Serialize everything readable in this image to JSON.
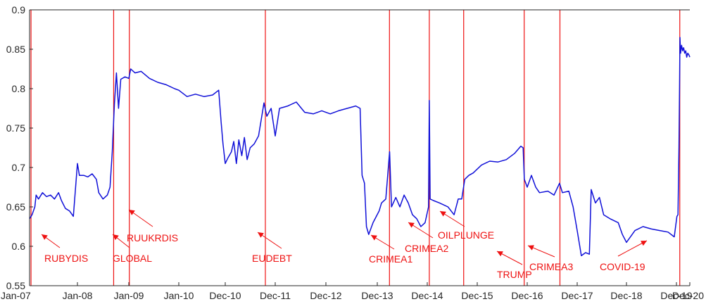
{
  "colors": {
    "series": "#1010d8",
    "event": "#ee1111",
    "axis": "#262626"
  },
  "chart_data": {
    "type": "line",
    "title": "",
    "xlabel": "",
    "ylabel": "",
    "ylim": [
      0.55,
      0.9
    ],
    "xlim": [
      "2007-01-01",
      "2020-12-31"
    ],
    "grid": false,
    "legend": "none",
    "xticks": [
      {
        "label": "Jan-07",
        "date": "2007-01-01"
      },
      {
        "label": "Jan-08",
        "date": "2008-01-01"
      },
      {
        "label": "Jan-09",
        "date": "2009-01-01"
      },
      {
        "label": "Jan-10",
        "date": "2010-01-01"
      },
      {
        "label": "Dec-10",
        "date": "2010-12-01"
      },
      {
        "label": "Dec-11",
        "date": "2011-12-01"
      },
      {
        "label": "Dec-12",
        "date": "2012-12-01"
      },
      {
        "label": "Dec-13",
        "date": "2013-12-01"
      },
      {
        "label": "Dec-14",
        "date": "2014-12-01"
      },
      {
        "label": "Dec-15",
        "date": "2015-12-01"
      },
      {
        "label": "Dec-16",
        "date": "2016-12-01"
      },
      {
        "label": "Dec-17",
        "date": "2017-12-01"
      },
      {
        "label": "Dec-18",
        "date": "2018-12-01"
      },
      {
        "label": "Dec-19",
        "date": "2019-12-01"
      },
      {
        "label": "Dec-20",
        "date": "2020-12-01"
      }
    ],
    "yticks": [
      {
        "label": "0.55",
        "value": 0.55
      },
      {
        "label": "0.6",
        "value": 0.6
      },
      {
        "label": "0.65",
        "value": 0.65
      },
      {
        "label": "0.7",
        "value": 0.7
      },
      {
        "label": "0.75",
        "value": 0.75
      },
      {
        "label": "0.8",
        "value": 0.8
      },
      {
        "label": "0.85",
        "value": 0.85
      },
      {
        "label": "0.9",
        "value": 0.9
      }
    ],
    "events": [
      {
        "label": "RUBYDIS",
        "date": "2007-01-12"
      },
      {
        "label": "GLOBAL",
        "date": "2008-09-15"
      },
      {
        "label": "RUUKRDIS",
        "date": "2009-01-05"
      },
      {
        "label": "EUDEBT",
        "date": "2011-09-20"
      },
      {
        "label": "CRIMEA1",
        "date": "2014-02-28"
      },
      {
        "label": "CRIMEA2",
        "date": "2014-12-16"
      },
      {
        "label": "OILPLUNGE",
        "date": "2015-08-24"
      },
      {
        "label": "TRUMP",
        "date": "2016-11-09"
      },
      {
        "label": "CRIMEA3",
        "date": "2017-07-28"
      },
      {
        "label": "COVID-19",
        "date": "2020-03-09"
      }
    ],
    "series": [
      {
        "points": [
          [
            "2007-01-01",
            0.635
          ],
          [
            "2007-01-20",
            0.64
          ],
          [
            "2007-02-10",
            0.65
          ],
          [
            "2007-02-20",
            0.665
          ],
          [
            "2007-03-10",
            0.66
          ],
          [
            "2007-04-10",
            0.668
          ],
          [
            "2007-05-10",
            0.663
          ],
          [
            "2007-06-10",
            0.665
          ],
          [
            "2007-07-10",
            0.66
          ],
          [
            "2007-08-10",
            0.668
          ],
          [
            "2007-09-01",
            0.658
          ],
          [
            "2007-10-01",
            0.648
          ],
          [
            "2007-11-01",
            0.645
          ],
          [
            "2007-12-01",
            0.638
          ],
          [
            "2008-01-01",
            0.705
          ],
          [
            "2008-01-15",
            0.69
          ],
          [
            "2008-02-15",
            0.69
          ],
          [
            "2008-03-15",
            0.688
          ],
          [
            "2008-04-15",
            0.692
          ],
          [
            "2008-05-15",
            0.685
          ],
          [
            "2008-06-01",
            0.668
          ],
          [
            "2008-07-01",
            0.66
          ],
          [
            "2008-08-01",
            0.665
          ],
          [
            "2008-08-20",
            0.675
          ],
          [
            "2008-09-05",
            0.72
          ],
          [
            "2008-09-20",
            0.78
          ],
          [
            "2008-10-05",
            0.82
          ],
          [
            "2008-10-20",
            0.775
          ],
          [
            "2008-11-05",
            0.812
          ],
          [
            "2008-12-05",
            0.815
          ],
          [
            "2009-01-01",
            0.813
          ],
          [
            "2009-01-15",
            0.825
          ],
          [
            "2009-02-15",
            0.82
          ],
          [
            "2009-04-01",
            0.822
          ],
          [
            "2009-06-01",
            0.813
          ],
          [
            "2009-08-01",
            0.808
          ],
          [
            "2009-10-01",
            0.805
          ],
          [
            "2009-12-01",
            0.8
          ],
          [
            "2010-01-01",
            0.798
          ],
          [
            "2010-03-01",
            0.79
          ],
          [
            "2010-05-01",
            0.793
          ],
          [
            "2010-07-01",
            0.79
          ],
          [
            "2010-09-01",
            0.792
          ],
          [
            "2010-10-15",
            0.798
          ],
          [
            "2010-11-01",
            0.758
          ],
          [
            "2010-11-15",
            0.73
          ],
          [
            "2010-12-01",
            0.705
          ],
          [
            "2010-12-20",
            0.712
          ],
          [
            "2011-01-15",
            0.72
          ],
          [
            "2011-02-01",
            0.733
          ],
          [
            "2011-02-20",
            0.705
          ],
          [
            "2011-03-10",
            0.735
          ],
          [
            "2011-04-01",
            0.715
          ],
          [
            "2011-04-20",
            0.738
          ],
          [
            "2011-05-10",
            0.71
          ],
          [
            "2011-06-01",
            0.725
          ],
          [
            "2011-07-01",
            0.73
          ],
          [
            "2011-08-01",
            0.74
          ],
          [
            "2011-08-20",
            0.76
          ],
          [
            "2011-09-10",
            0.782
          ],
          [
            "2011-10-01",
            0.765
          ],
          [
            "2011-11-01",
            0.775
          ],
          [
            "2011-12-01",
            0.74
          ],
          [
            "2012-01-01",
            0.775
          ],
          [
            "2012-03-01",
            0.778
          ],
          [
            "2012-05-01",
            0.783
          ],
          [
            "2012-07-01",
            0.77
          ],
          [
            "2012-09-01",
            0.768
          ],
          [
            "2012-11-01",
            0.772
          ],
          [
            "2013-01-01",
            0.768
          ],
          [
            "2013-03-01",
            0.772
          ],
          [
            "2013-05-01",
            0.775
          ],
          [
            "2013-07-01",
            0.778
          ],
          [
            "2013-08-01",
            0.775
          ],
          [
            "2013-08-15",
            0.69
          ],
          [
            "2013-09-01",
            0.68
          ],
          [
            "2013-09-15",
            0.625
          ],
          [
            "2013-10-01",
            0.615
          ],
          [
            "2013-11-01",
            0.63
          ],
          [
            "2013-12-15",
            0.645
          ],
          [
            "2014-01-01",
            0.655
          ],
          [
            "2014-02-01",
            0.66
          ],
          [
            "2014-03-01",
            0.72
          ],
          [
            "2014-03-15",
            0.65
          ],
          [
            "2014-04-15",
            0.662
          ],
          [
            "2014-05-15",
            0.65
          ],
          [
            "2014-06-15",
            0.665
          ],
          [
            "2014-07-15",
            0.655
          ],
          [
            "2014-08-15",
            0.64
          ],
          [
            "2014-09-15",
            0.635
          ],
          [
            "2014-10-15",
            0.625
          ],
          [
            "2014-11-15",
            0.63
          ],
          [
            "2014-12-10",
            0.65
          ],
          [
            "2014-12-16",
            0.785
          ],
          [
            "2014-12-22",
            0.66
          ],
          [
            "2015-01-15",
            0.658
          ],
          [
            "2015-03-01",
            0.655
          ],
          [
            "2015-05-01",
            0.65
          ],
          [
            "2015-06-15",
            0.64
          ],
          [
            "2015-07-15",
            0.66
          ],
          [
            "2015-08-10",
            0.66
          ],
          [
            "2015-09-01",
            0.685
          ],
          [
            "2015-10-01",
            0.69
          ],
          [
            "2015-11-01",
            0.693
          ],
          [
            "2016-01-01",
            0.703
          ],
          [
            "2016-03-01",
            0.708
          ],
          [
            "2016-05-01",
            0.707
          ],
          [
            "2016-07-01",
            0.71
          ],
          [
            "2016-09-01",
            0.718
          ],
          [
            "2016-10-15",
            0.727
          ],
          [
            "2016-11-01",
            0.725
          ],
          [
            "2016-11-10",
            0.685
          ],
          [
            "2016-12-01",
            0.675
          ],
          [
            "2017-01-01",
            0.69
          ],
          [
            "2017-02-01",
            0.675
          ],
          [
            "2017-03-01",
            0.668
          ],
          [
            "2017-05-01",
            0.67
          ],
          [
            "2017-06-15",
            0.665
          ],
          [
            "2017-07-25",
            0.68
          ],
          [
            "2017-08-15",
            0.668
          ],
          [
            "2017-10-01",
            0.67
          ],
          [
            "2017-11-01",
            0.65
          ],
          [
            "2017-12-01",
            0.62
          ],
          [
            "2018-01-01",
            0.588
          ],
          [
            "2018-02-01",
            0.592
          ],
          [
            "2018-03-01",
            0.59
          ],
          [
            "2018-03-15",
            0.672
          ],
          [
            "2018-04-15",
            0.655
          ],
          [
            "2018-05-15",
            0.662
          ],
          [
            "2018-06-15",
            0.64
          ],
          [
            "2018-08-01",
            0.635
          ],
          [
            "2018-10-01",
            0.63
          ],
          [
            "2018-11-01",
            0.615
          ],
          [
            "2018-12-01",
            0.605
          ],
          [
            "2019-02-01",
            0.62
          ],
          [
            "2019-04-01",
            0.625
          ],
          [
            "2019-06-01",
            0.622
          ],
          [
            "2019-08-01",
            0.62
          ],
          [
            "2019-10-01",
            0.618
          ],
          [
            "2019-11-15",
            0.612
          ],
          [
            "2019-12-15",
            0.638
          ],
          [
            "2020-01-15",
            0.64
          ],
          [
            "2020-02-15",
            0.725
          ],
          [
            "2020-03-01",
            0.8
          ],
          [
            "2020-03-15",
            0.865
          ],
          [
            "2020-04-01",
            0.845
          ],
          [
            "2020-05-01",
            0.855
          ],
          [
            "2020-06-01",
            0.848
          ],
          [
            "2020-07-01",
            0.852
          ],
          [
            "2020-08-01",
            0.845
          ],
          [
            "2020-09-01",
            0.848
          ],
          [
            "2020-10-01",
            0.84
          ],
          [
            "2020-11-01",
            0.845
          ],
          [
            "2020-12-01",
            0.843
          ],
          [
            "2020-12-31",
            0.84
          ]
        ]
      }
    ]
  }
}
